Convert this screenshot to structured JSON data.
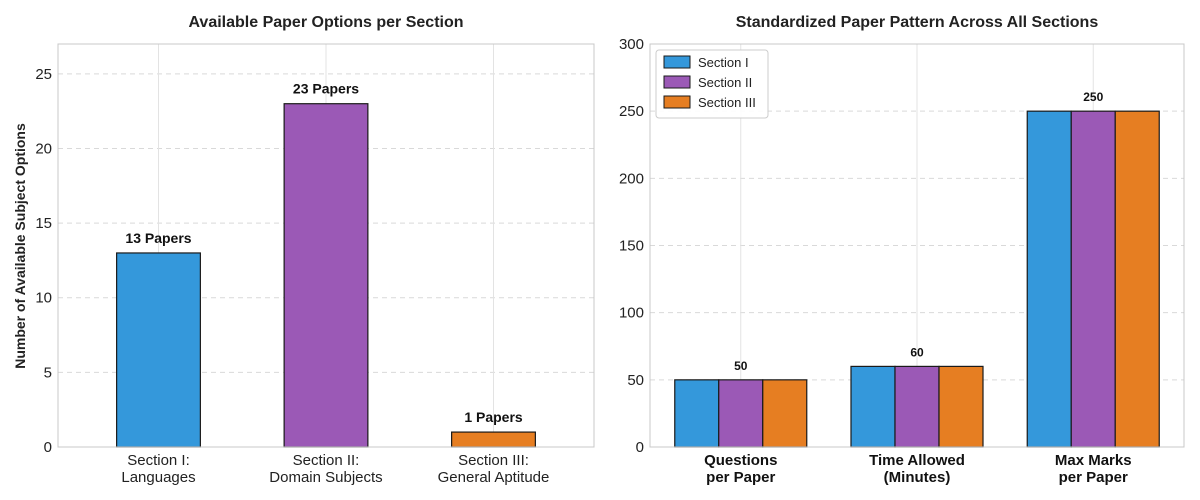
{
  "chart_data": [
    {
      "type": "bar",
      "title": "Available Paper Options per Section",
      "xlabel": "",
      "ylabel": "Number of Available Subject Options",
      "ylim": [
        0,
        27
      ],
      "yticks": [
        0,
        5,
        10,
        15,
        20,
        25
      ],
      "grid": true,
      "categories": [
        [
          "Section I:",
          "Languages"
        ],
        [
          "Section II:",
          "Domain Subjects"
        ],
        [
          "Section III:",
          "General Aptitude"
        ]
      ],
      "values": [
        13,
        23,
        1
      ],
      "data_labels": [
        "13 Papers",
        "23 Papers",
        "1 Papers"
      ],
      "colors": [
        "#3498db",
        "#9b59b6",
        "#e67e22"
      ]
    },
    {
      "type": "bar",
      "title": "Standardized Paper Pattern Across All Sections",
      "xlabel": "",
      "ylabel": "",
      "ylim": [
        0,
        300
      ],
      "yticks": [
        0,
        50,
        100,
        150,
        200,
        250,
        300
      ],
      "grid": true,
      "legend": "top-left",
      "categories": [
        [
          "Questions",
          "per Paper"
        ],
        [
          "Time Allowed",
          "(Minutes)"
        ],
        [
          "Max Marks",
          "per Paper"
        ]
      ],
      "series": [
        {
          "name": "Section I",
          "values": [
            50,
            60,
            250
          ],
          "color": "#3498db"
        },
        {
          "name": "Section II",
          "values": [
            50,
            60,
            250
          ],
          "color": "#9b59b6"
        },
        {
          "name": "Section III",
          "values": [
            50,
            60,
            250
          ],
          "color": "#e67e22"
        }
      ],
      "data_labels": [
        "50",
        "60",
        "250"
      ]
    }
  ]
}
